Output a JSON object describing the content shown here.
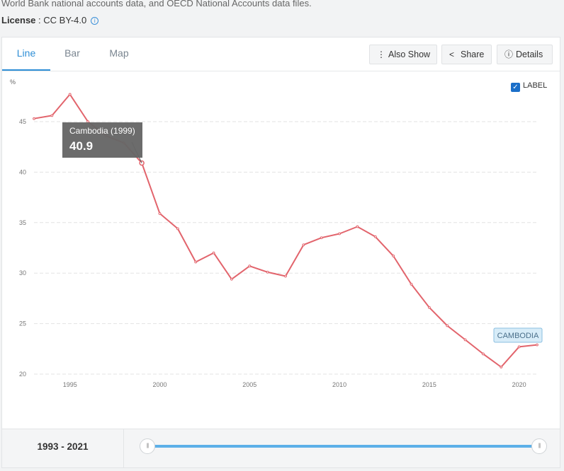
{
  "source_text": "World Bank national accounts data, and OECD National Accounts data files.",
  "license": {
    "label": "License",
    "value": "CC BY-4.0"
  },
  "tabs": [
    {
      "label": "Line",
      "active": true
    },
    {
      "label": "Bar",
      "active": false
    },
    {
      "label": "Map",
      "active": false
    }
  ],
  "actions": {
    "also_show": "Also Show",
    "share": "Share",
    "details": "Details"
  },
  "label_toggle": {
    "label": "LABEL",
    "checked": true
  },
  "tooltip": {
    "title": "Cambodia (1999)",
    "value": "40.9"
  },
  "series_label": "CAMBODIA",
  "year_range": {
    "start": "1993",
    "separator": "-",
    "end": "2021"
  },
  "colors": {
    "accent": "#2f8fd6",
    "line": "#e2646c",
    "slider": "#5cb0e8"
  },
  "chart_data": {
    "type": "line",
    "ylabel": "%",
    "xlim": [
      1993,
      2021
    ],
    "ylim": [
      20,
      50
    ],
    "x_ticks": [
      1995,
      2000,
      2005,
      2010,
      2015,
      2020
    ],
    "y_ticks": [
      20,
      25,
      30,
      35,
      40,
      45
    ],
    "grid": true,
    "series": [
      {
        "name": "CAMBODIA",
        "x": [
          1993,
          1994,
          1995,
          1996,
          1997,
          1998,
          1999,
          2000,
          2001,
          2002,
          2003,
          2004,
          2005,
          2006,
          2007,
          2008,
          2009,
          2010,
          2011,
          2012,
          2013,
          2014,
          2015,
          2016,
          2017,
          2018,
          2019,
          2020,
          2021
        ],
        "values": [
          45.3,
          45.6,
          47.7,
          45.0,
          43.6,
          42.9,
          40.9,
          35.9,
          34.4,
          31.1,
          32.0,
          29.4,
          30.7,
          30.1,
          29.7,
          32.8,
          33.5,
          33.9,
          34.6,
          33.6,
          31.7,
          28.9,
          26.6,
          24.8,
          23.4,
          22.0,
          20.7,
          22.7,
          22.9
        ]
      }
    ]
  }
}
